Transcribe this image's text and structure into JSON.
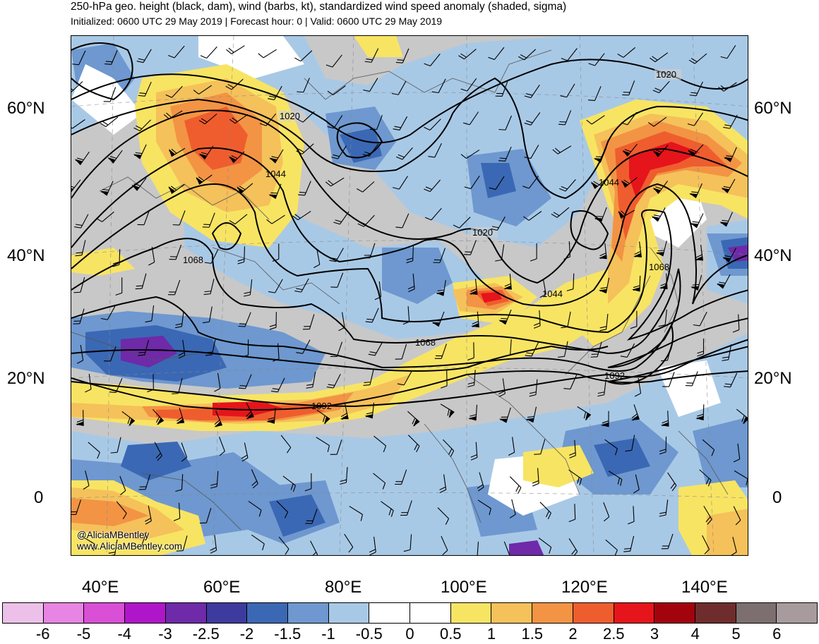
{
  "header": {
    "title": "250-hPa geo. height (black, dam), wind (barbs, kt), standardized wind speed anomaly (shaded, sigma)",
    "subtitle": "Initialized: 0600 UTC 29 May 2019 | Forecast hour: 0 | Valid: 0600 UTC 29 May 2019"
  },
  "map": {
    "lat_labels": [
      "60°N",
      "40°N",
      "20°N",
      "0"
    ],
    "lon_labels": [
      "40°E",
      "60°E",
      "80°E",
      "100°E",
      "120°E",
      "140°E"
    ],
    "contour_labels": [
      "1020",
      "1020",
      "1020",
      "1044",
      "1044",
      "1044",
      "1068",
      "1068",
      "1068",
      "1092",
      "1092"
    ],
    "credit_handle": "@AliciaMBentley",
    "credit_url": "www.AliciaMBentley.com"
  },
  "colorbar": {
    "ticks": [
      "-6",
      "-5",
      "-4",
      "-3",
      "-2.5",
      "-2",
      "-1.5",
      "-1",
      "-0.5",
      "0",
      "0.5",
      "1",
      "1.5",
      "2",
      "2.5",
      "3",
      "4",
      "5",
      "6"
    ],
    "colors": [
      "#ecc0e8",
      "#e884e4",
      "#d94fd6",
      "#b016c9",
      "#6e2aa8",
      "#3d3b9e",
      "#3b68b4",
      "#6e98cf",
      "#a8c9e6",
      "#ffffff",
      "#ffffff",
      "#f8e463",
      "#f5c15a",
      "#f29444",
      "#ef5d2e",
      "#e6141b",
      "#a3030d",
      "#6e2d2c",
      "#7d6f70",
      "#a89b9e"
    ]
  }
}
